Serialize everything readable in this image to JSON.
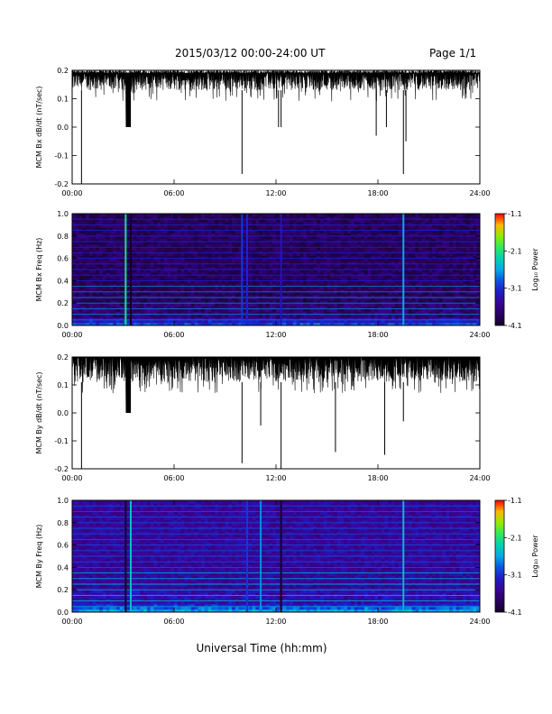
{
  "header": {
    "title": "2015/03/12  00:00-24:00 UT",
    "page": "Page 1/1"
  },
  "footer": {
    "xlabel": "Universal Time (hh:mm)"
  },
  "colors": {
    "trace": "#000000",
    "spectrogram_low": "#1a0040",
    "spectrogram_high": "#ff0000"
  },
  "chart_data": [
    {
      "type": "line",
      "id": "bx_dbdt",
      "ylabel": "MCM Bx dB/dt (nT/sec)",
      "xlim": [
        0,
        24
      ],
      "ylim": [
        -0.2,
        0.2
      ],
      "x_ticks": [
        "00:00",
        "06:00",
        "12:00",
        "18:00",
        "24:00"
      ],
      "y_ticks": [
        "-0.2",
        "-0.1",
        "0.0",
        "0.1",
        "0.2"
      ],
      "y_tick_values": [
        -0.2,
        -0.1,
        0.0,
        0.1,
        0.2
      ],
      "baseline_range": [
        0.13,
        0.19
      ],
      "dropouts": [
        [
          3.15,
          3.45,
          0.0
        ]
      ],
      "spikes": [
        {
          "x": 0.55,
          "y": -0.2
        },
        {
          "x": 10.0,
          "y": -0.165
        },
        {
          "x": 12.15,
          "y": 0.0
        },
        {
          "x": 12.3,
          "y": 0.0
        },
        {
          "x": 17.9,
          "y": -0.03
        },
        {
          "x": 18.5,
          "y": 0.0
        },
        {
          "x": 19.5,
          "y": -0.165
        },
        {
          "x": 19.65,
          "y": -0.05
        }
      ]
    },
    {
      "type": "heatmap",
      "id": "bx_spectrogram",
      "ylabel": "MCM Bx Freq (Hz)",
      "xlim": [
        0,
        24
      ],
      "ylim": [
        0,
        1
      ],
      "x_ticks": [
        "00:00",
        "06:00",
        "12:00",
        "18:00",
        "24:00"
      ],
      "y_ticks": [
        "0.0",
        "0.2",
        "0.4",
        "0.6",
        "0.8",
        "1.0"
      ],
      "colorbar": {
        "label": "Log₁₀ Power",
        "ticks": [
          "-1.1",
          "-2.1",
          "-3.1",
          "-4.1"
        ],
        "range": [
          -4.1,
          -1.1
        ]
      },
      "harmonic_freqs": [
        0.05,
        0.1,
        0.15,
        0.2,
        0.25,
        0.3,
        0.35,
        0.4,
        0.45,
        0.5,
        0.55,
        0.6,
        0.65,
        0.7,
        0.75,
        0.8,
        0.85,
        0.9,
        0.95,
        1.0
      ],
      "broadband_events": [
        {
          "x": 3.15,
          "level": -2.1
        },
        {
          "x": 3.45,
          "level": -4.1
        },
        {
          "x": 10.0,
          "level": -3.0
        },
        {
          "x": 10.3,
          "level": -3.1
        },
        {
          "x": 12.3,
          "level": -3.3
        },
        {
          "x": 19.5,
          "level": -2.6
        }
      ]
    },
    {
      "type": "line",
      "id": "by_dbdt",
      "ylabel": "MCM By dB/dt (nT/sec)",
      "xlim": [
        0,
        24
      ],
      "ylim": [
        -0.2,
        0.2
      ],
      "x_ticks": [
        "00:00",
        "06:00",
        "12:00",
        "18:00",
        "24:00"
      ],
      "y_ticks": [
        "-0.2",
        "-0.1",
        "0.0",
        "0.1",
        "0.2"
      ],
      "y_tick_values": [
        -0.2,
        -0.1,
        0.0,
        0.1,
        0.2
      ],
      "baseline_range": [
        0.11,
        0.2
      ],
      "dropouts": [
        [
          3.15,
          3.45,
          0.0
        ]
      ],
      "spikes": [
        {
          "x": 0.55,
          "y": -0.2
        },
        {
          "x": 10.0,
          "y": -0.18
        },
        {
          "x": 11.1,
          "y": -0.045
        },
        {
          "x": 12.3,
          "y": -0.2
        },
        {
          "x": 15.5,
          "y": -0.14
        },
        {
          "x": 18.4,
          "y": -0.15
        },
        {
          "x": 19.5,
          "y": -0.03
        }
      ]
    },
    {
      "type": "heatmap",
      "id": "by_spectrogram",
      "ylabel": "MCM By Freq (Hz)",
      "xlim": [
        0,
        24
      ],
      "ylim": [
        0,
        1
      ],
      "x_ticks": [
        "00:00",
        "06:00",
        "12:00",
        "18:00",
        "24:00"
      ],
      "y_ticks": [
        "0.0",
        "0.2",
        "0.4",
        "0.6",
        "0.8",
        "1.0"
      ],
      "colorbar": {
        "label": "Log₁₀ Power",
        "ticks": [
          "-1.1",
          "-2.1",
          "-3.1",
          "-4.1"
        ],
        "range": [
          -4.1,
          -1.1
        ]
      },
      "harmonic_freqs": [
        0.05,
        0.1,
        0.15,
        0.2,
        0.25,
        0.3,
        0.35,
        0.4,
        0.45,
        0.5,
        0.55,
        0.6,
        0.65,
        0.7,
        0.75,
        0.8,
        0.85,
        0.9,
        0.95,
        1.0
      ],
      "broadband_events": [
        {
          "x": 3.15,
          "level": -4.1
        },
        {
          "x": 3.45,
          "level": -2.4
        },
        {
          "x": 10.3,
          "level": -3.0
        },
        {
          "x": 11.1,
          "level": -2.7
        },
        {
          "x": 12.3,
          "level": -4.1
        },
        {
          "x": 19.5,
          "level": -2.5
        }
      ]
    }
  ]
}
